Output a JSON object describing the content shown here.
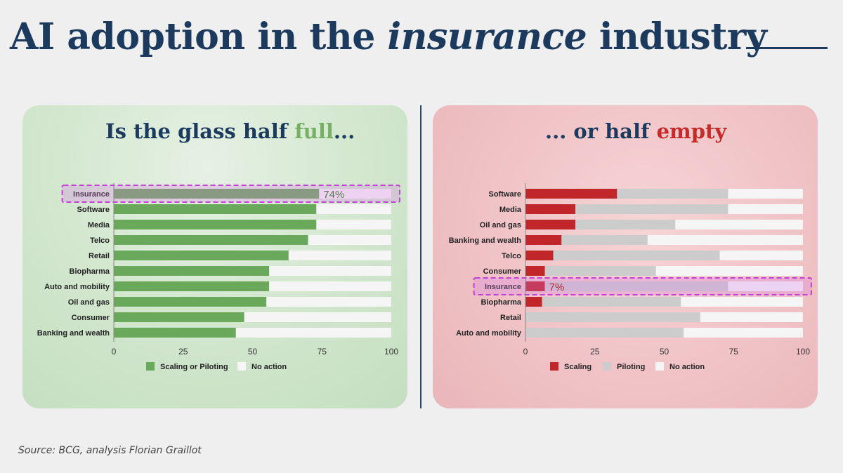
{
  "header": {
    "title_pre": "AI adoption in the ",
    "title_em": "insurance",
    "title_post": " industry"
  },
  "panels": {
    "left": {
      "title_pre": "Is the glass half ",
      "title_accent": "full",
      "title_post": "..."
    },
    "right": {
      "title_pre": "... or half ",
      "title_accent": "empty",
      "title_post": ""
    }
  },
  "footer": {
    "source": "Source: BCG, analysis Florian Graillot"
  },
  "colors": {
    "green": "#6aa85b",
    "red": "#c0262a",
    "grey": "#cccccc",
    "white": "#f5f5f5",
    "highlight": "#c342d6",
    "navy": "#1c3a5e"
  },
  "chart_data": [
    {
      "type": "bar",
      "orientation": "horizontal",
      "stacked": true,
      "categories": [
        "Insurance",
        "Software",
        "Media",
        "Telco",
        "Retail",
        "Biopharma",
        "Auto and mobility",
        "Oil and gas",
        "Consumer",
        "Banking and wealth"
      ],
      "series": [
        {
          "name": "Scaling or Piloting",
          "values": [
            74,
            73,
            73,
            70,
            63,
            56,
            56,
            55,
            47,
            44
          ]
        },
        {
          "name": "No action",
          "values": [
            26,
            27,
            27,
            30,
            37,
            44,
            44,
            45,
            53,
            56
          ]
        }
      ],
      "highlight": {
        "category": "Insurance",
        "label": "74%"
      },
      "xlim": [
        0,
        100
      ],
      "xticks": [
        "0",
        "25",
        "50",
        "75",
        "100"
      ],
      "legend": "bottom"
    },
    {
      "type": "bar",
      "orientation": "horizontal",
      "stacked": true,
      "categories": [
        "Software",
        "Media",
        "Oil and gas",
        "Banking and wealth",
        "Telco",
        "Consumer",
        "Insurance",
        "Biopharma",
        "Retail",
        "Auto and mobility"
      ],
      "series": [
        {
          "name": "Scaling",
          "values": [
            33,
            18,
            18,
            13,
            10,
            7,
            7,
            6,
            0,
            0
          ]
        },
        {
          "name": "Piloting",
          "values": [
            40,
            55,
            36,
            31,
            60,
            40,
            66,
            50,
            63,
            57
          ]
        },
        {
          "name": "No action",
          "values": [
            27,
            27,
            46,
            56,
            30,
            53,
            27,
            44,
            37,
            43
          ]
        }
      ],
      "highlight": {
        "category": "Insurance",
        "label": "7%"
      },
      "xlim": [
        0,
        100
      ],
      "xticks": [
        "0",
        "25",
        "50",
        "75",
        "100"
      ],
      "legend": "bottom"
    }
  ]
}
